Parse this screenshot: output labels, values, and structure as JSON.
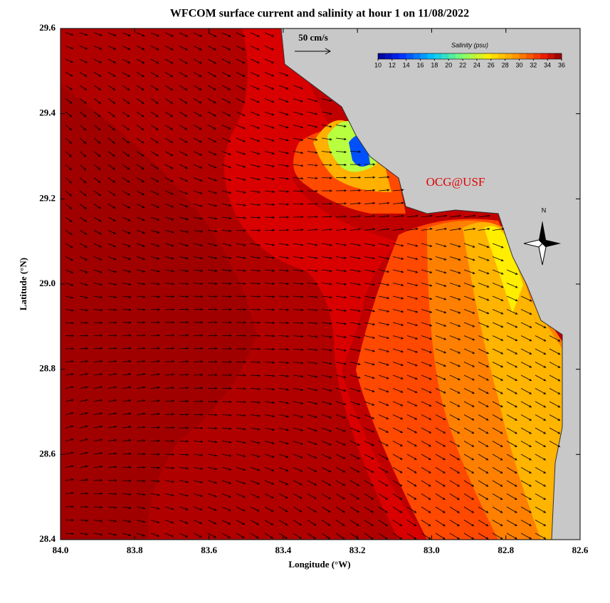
{
  "chart_data": {
    "type": "map",
    "title": "WFCOM surface current and salinity at hour 1 on 11/08/2022",
    "xlabel": "Longitude (°W)",
    "ylabel": "Latitude (°N)",
    "xlim": [
      84,
      82.6
    ],
    "ylim": [
      28.4,
      29.6
    ],
    "xticks": [
      {
        "value": 84,
        "label": "84.0"
      },
      83.8,
      83.6,
      83.4,
      83.2,
      {
        "value": 83,
        "label": "83.0"
      },
      82.8,
      82.6
    ],
    "yticks": [
      28.4,
      28.6,
      28.8,
      {
        "value": 29,
        "label": "29.0"
      },
      29.2,
      29.4,
      29.6
    ],
    "colorbar": {
      "title": "Salinity (psu)",
      "lim": [
        10,
        36
      ],
      "ticks": [
        10,
        12,
        14,
        16,
        18,
        20,
        22,
        24,
        26,
        28,
        30,
        32,
        34,
        36
      ]
    },
    "scale_label": "50 cm/s",
    "watermark": "OCG@USF",
    "compass_label": "N"
  }
}
